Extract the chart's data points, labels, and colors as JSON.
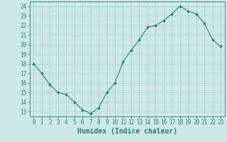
{
  "x": [
    0,
    1,
    2,
    3,
    4,
    5,
    6,
    7,
    8,
    9,
    10,
    11,
    12,
    13,
    14,
    15,
    16,
    17,
    18,
    19,
    20,
    21,
    22,
    23
  ],
  "y": [
    18,
    17,
    15.8,
    15,
    14.8,
    14,
    13.2,
    12.8,
    13.4,
    15,
    16,
    18.2,
    19.4,
    20.5,
    21.8,
    22,
    22.5,
    23.2,
    24,
    23.5,
    23.2,
    22.2,
    20.5,
    19.8
  ],
  "line_color": "#2e7d6e",
  "marker": "D",
  "marker_size": 2.0,
  "bg_color": "#cce8e8",
  "grid_color": "#aad0d0",
  "tick_color": "#2e7d6e",
  "xlabel": "Humidex (Indice chaleur)",
  "xlabel_fontsize": 7,
  "xlim": [
    -0.5,
    23.5
  ],
  "ylim": [
    12.5,
    24.5
  ],
  "yticks": [
    13,
    14,
    15,
    16,
    17,
    18,
    19,
    20,
    21,
    22,
    23,
    24
  ],
  "xticks": [
    0,
    1,
    2,
    3,
    4,
    5,
    6,
    7,
    8,
    9,
    10,
    11,
    12,
    13,
    14,
    15,
    16,
    17,
    18,
    19,
    20,
    21,
    22,
    23
  ],
  "tick_fontsize": 5.5
}
